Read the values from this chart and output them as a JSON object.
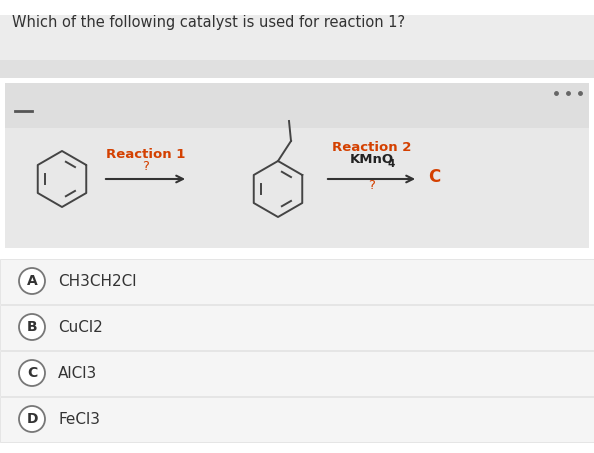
{
  "title": "Which of the following catalyst is used for reaction 1?",
  "background_color": "#ffffff",
  "reaction_area_bg": "#e8e8e8",
  "reaction1_label": "Reaction 1",
  "reaction1_sub": "?",
  "reaction2_label": "Reaction 2",
  "kmno4_text": "KMnO",
  "kmno4_sub": "4",
  "reaction2_sub": "?",
  "product_label": "C",
  "options": [
    {
      "letter": "A",
      "text": "CH3CH2Cl"
    },
    {
      "letter": "B",
      "text": "CuCl2"
    },
    {
      "letter": "C",
      "text": "AlCl3"
    },
    {
      "letter": "D",
      "text": "FeCl3"
    }
  ],
  "title_fontsize": 10.5,
  "option_fontsize": 11,
  "reaction_label_color": "#d44000",
  "kmno_color": "#222222",
  "product_color": "#d44000",
  "arrow_color": "#333333",
  "text_color": "#333333",
  "circle_edge_color": "#777777",
  "option_bg": "#f5f5f5",
  "option_border": "#dddddd",
  "dots_color": "#666666",
  "blurred_bar_color": "#cccccc",
  "blurred_bar2_color": "#dddddd"
}
